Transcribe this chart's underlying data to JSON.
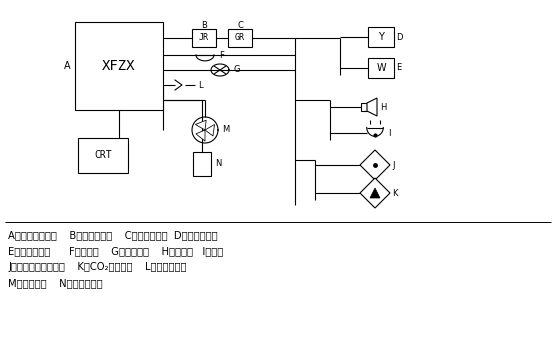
{
  "bg_color": "#ffffff",
  "line_color": "#000000",
  "text_color": "#000000",
  "figsize": [
    5.56,
    3.52
  ],
  "dpi": 100,
  "legend_lines": [
    "A、消防控制中心    B、报警控制器    C、楼层显示器  D、感烟探测器",
    "E、感温探测器      F、通风口    G、消防广播    H、扬声器   I、电话",
    "J、自动喷水灭火系统    K、CO₂灭火系统    L、疏散指示灯",
    "M、消防水泵    N、防火卷帘门"
  ]
}
